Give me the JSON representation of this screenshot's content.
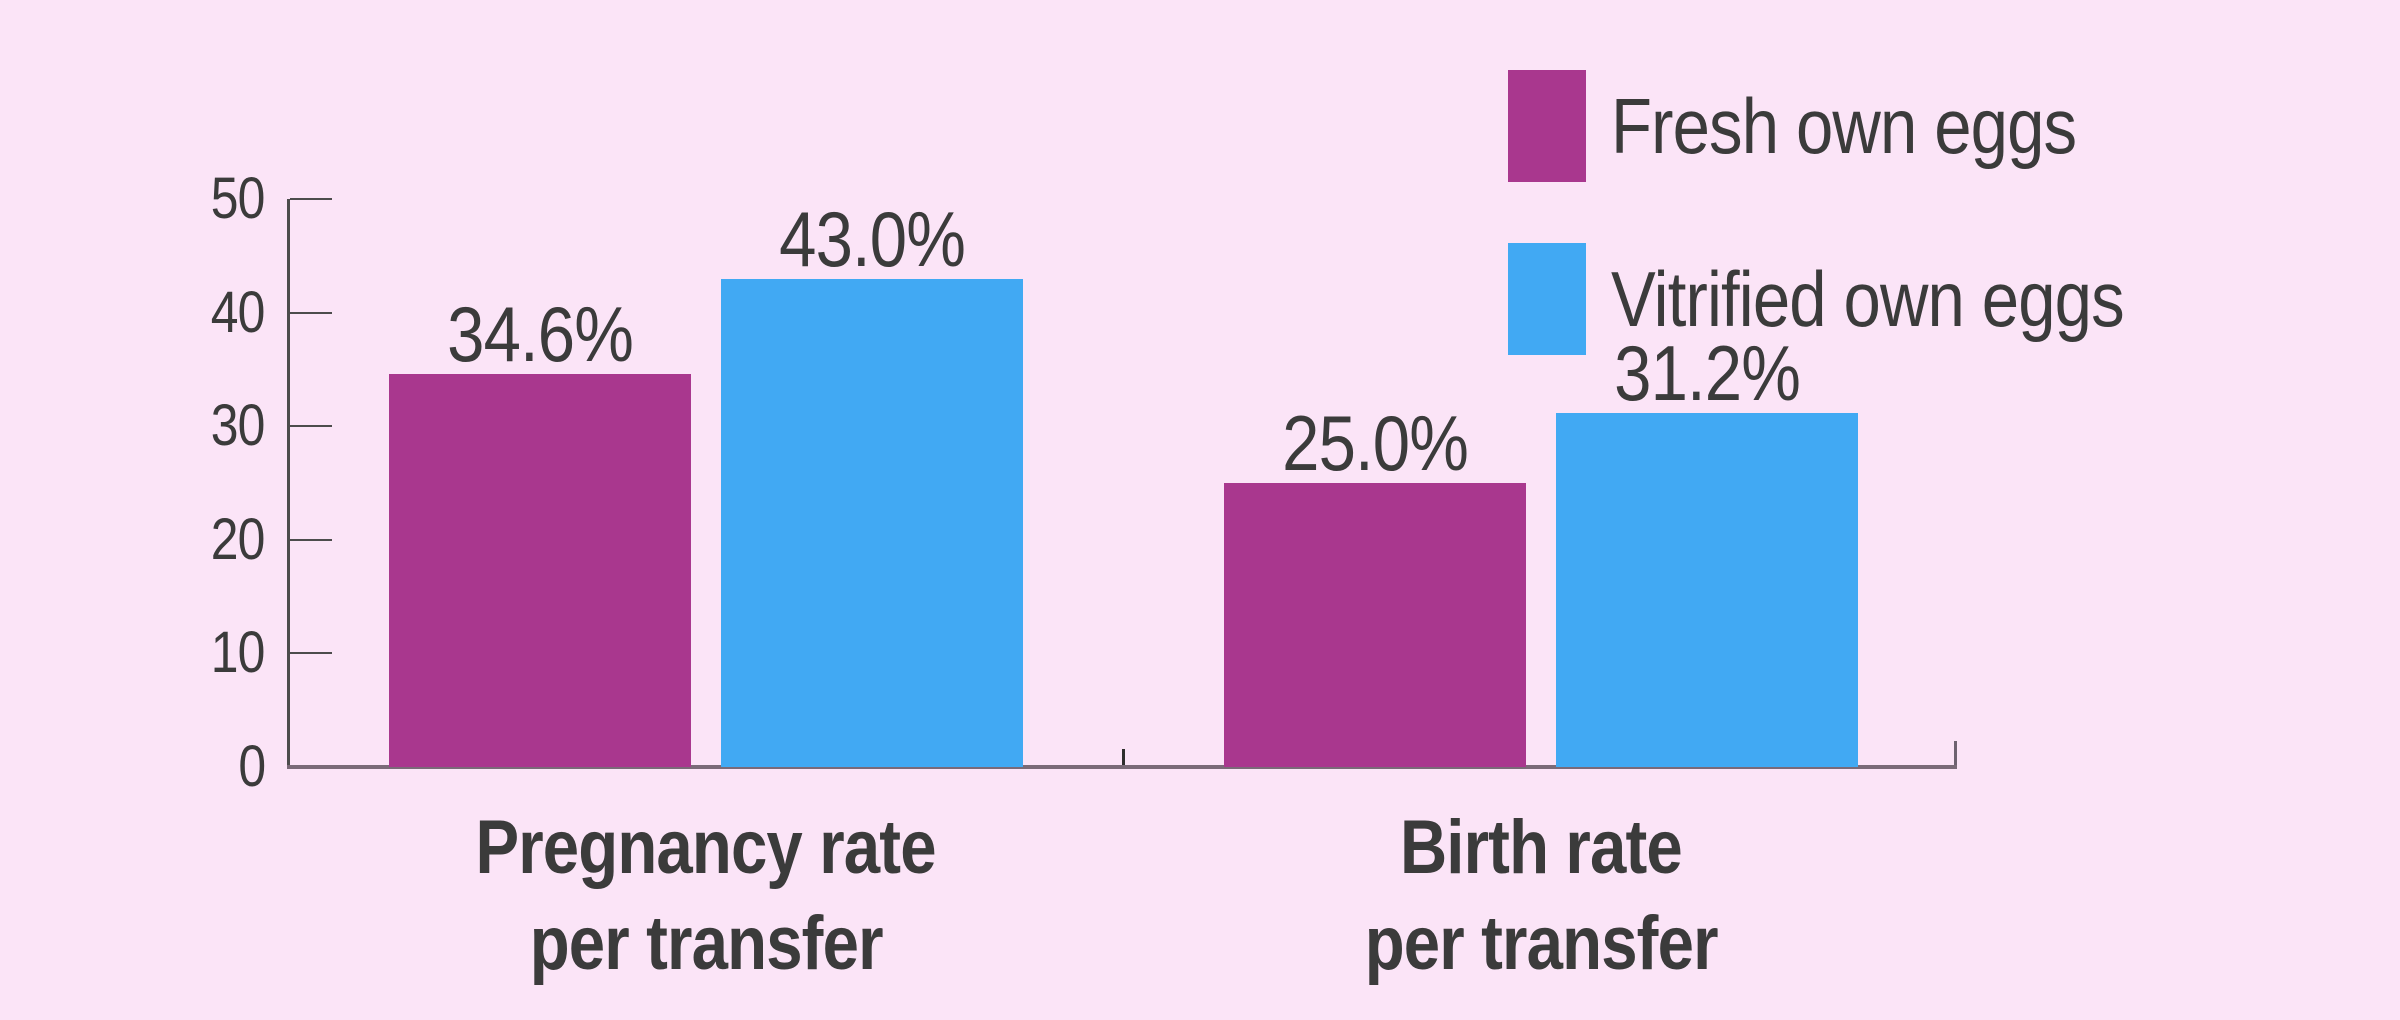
{
  "chart_data": {
    "type": "bar",
    "title": "",
    "categories": [
      "Pregnancy rate\nper transfer",
      "Birth rate\nper transfer"
    ],
    "series": [
      {
        "name": "Fresh own eggs",
        "color": "#A9378E",
        "values": [
          34.6,
          25.0
        ],
        "labels": [
          "34.6%",
          "25.0%"
        ]
      },
      {
        "name": "Vitrified own eggs",
        "color": "#41A9F3",
        "values": [
          43.0,
          31.2
        ],
        "labels": [
          "43.0%",
          "31.2%"
        ]
      }
    ],
    "y_axis": {
      "min": 0,
      "max": 50,
      "tick_interval": 10,
      "tick_labels": [
        "0",
        "10",
        "20",
        "30",
        "40",
        "50"
      ]
    },
    "legend": {
      "position": "top-right",
      "items": [
        "Fresh own eggs",
        "Vitrified own eggs"
      ]
    },
    "grid": false,
    "colors": {
      "background": "#FBE4F7",
      "text": "#3B3B3B",
      "axis": "#4C4C4C",
      "baseline": "#7A6A78",
      "group_tick": "#2E2E2E",
      "end_tick": "#6E6270"
    }
  }
}
